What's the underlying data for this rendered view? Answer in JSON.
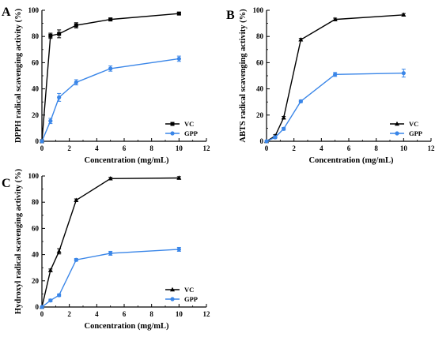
{
  "colors": {
    "vc": "#000000",
    "gpp": "#3a86e8",
    "axis": "#000000"
  },
  "chart_data": [
    {
      "type": "line",
      "panel": "A",
      "xlabel": "Concentration (mg/mL)",
      "ylabel": "DPPH radical scavenging activity (%)",
      "xlim": [
        0,
        12
      ],
      "ylim": [
        0,
        100
      ],
      "xticks": [
        "0",
        "2",
        "4",
        "6",
        "8",
        "10",
        "12"
      ],
      "yticks": [
        "0",
        "20",
        "40",
        "60",
        "80",
        "100"
      ],
      "legend_position": "bottom-right",
      "series": [
        {
          "name": "VC",
          "marker": "square",
          "x": [
            0,
            0.625,
            1.25,
            2.5,
            5,
            10
          ],
          "y": [
            0,
            80.5,
            82,
            88.5,
            93,
            97.5
          ],
          "err": [
            0,
            2,
            3,
            2,
            1,
            1
          ]
        },
        {
          "name": "GPP",
          "marker": "circle",
          "x": [
            0,
            0.625,
            1.25,
            2.5,
            5,
            10
          ],
          "y": [
            0,
            15.5,
            33.5,
            45,
            55.5,
            63
          ],
          "err": [
            0,
            2,
            3,
            2,
            2,
            2
          ]
        }
      ]
    },
    {
      "type": "line",
      "panel": "B",
      "xlabel": "Concentration (mg/mL)",
      "ylabel": "ABTS radical scavenging activity (%)",
      "xlim": [
        0,
        12
      ],
      "ylim": [
        0,
        100
      ],
      "xticks": [
        "0",
        "2",
        "4",
        "6",
        "8",
        "10",
        "12"
      ],
      "yticks": [
        "0",
        "20",
        "40",
        "60",
        "80",
        "100"
      ],
      "legend_position": "bottom-right",
      "series": [
        {
          "name": "VC",
          "marker": "triangle",
          "x": [
            0,
            0.625,
            1.25,
            2.5,
            5,
            10
          ],
          "y": [
            0,
            4,
            18,
            77.5,
            93,
            96.5
          ],
          "err": [
            0,
            1,
            1,
            1,
            1,
            1
          ]
        },
        {
          "name": "GPP",
          "marker": "circle",
          "x": [
            0,
            0.625,
            1.25,
            2.5,
            5,
            10
          ],
          "y": [
            0,
            3,
            9.5,
            30.5,
            51,
            52
          ],
          "err": [
            0,
            1,
            1,
            1,
            1.5,
            3
          ]
        }
      ]
    },
    {
      "type": "line",
      "panel": "C",
      "xlabel": "Concentration (mg/mL)",
      "ylabel": "Hydroxyl radical scavenging activity (%)",
      "xlim": [
        0,
        12
      ],
      "ylim": [
        0,
        100
      ],
      "xticks": [
        "0",
        "2",
        "4",
        "6",
        "8",
        "10",
        "12"
      ],
      "yticks": [
        "0",
        "20",
        "40",
        "60",
        "80",
        "100"
      ],
      "legend_position": "bottom-right",
      "series": [
        {
          "name": "VC",
          "marker": "triangle",
          "x": [
            0,
            0.625,
            1.25,
            2.5,
            5,
            10
          ],
          "y": [
            0,
            28,
            42.5,
            81.5,
            98,
            98.5
          ],
          "err": [
            0,
            1,
            2,
            1,
            1,
            1
          ]
        },
        {
          "name": "GPP",
          "marker": "circle",
          "x": [
            0,
            0.625,
            1.25,
            2.5,
            5,
            10
          ],
          "y": [
            0,
            5,
            9,
            36,
            41,
            44
          ],
          "err": [
            0,
            1,
            1,
            1,
            1.5,
            1.5
          ]
        }
      ]
    }
  ]
}
